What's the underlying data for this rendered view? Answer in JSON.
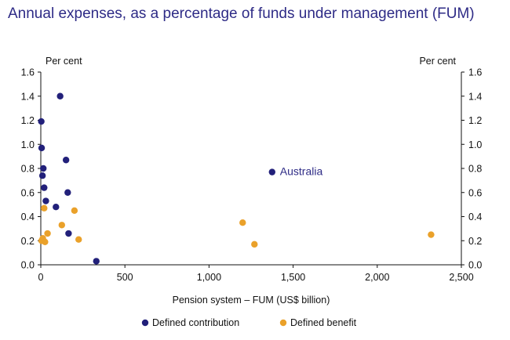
{
  "title": "Annual expenses, as a percentage of funds under management (FUM)",
  "colors": {
    "title": "#2e2b86",
    "defined_contribution": "#22207a",
    "defined_benefit": "#eaa12a",
    "axis": "#111111"
  },
  "chart_data": {
    "type": "scatter",
    "title": "Annual expenses, as a percentage of funds under management (FUM)",
    "xlabel": "Pension system – FUM (US$ billion)",
    "ylabel_left": "Per cent",
    "ylabel_right": "Per cent",
    "xlim": [
      0,
      2500
    ],
    "ylim": [
      0,
      1.6
    ],
    "x_ticks": [
      0,
      500,
      1000,
      1500,
      2000,
      2500
    ],
    "x_tick_labels": [
      "0",
      "500",
      "1,000",
      "1,500",
      "2,000",
      "2,500"
    ],
    "y_ticks": [
      0,
      0.2,
      0.4,
      0.6,
      0.8,
      1.0,
      1.2,
      1.4,
      1.6
    ],
    "y_tick_labels": [
      "0.0",
      "0.2",
      "0.4",
      "0.6",
      "0.8",
      "1.0",
      "1.2",
      "1.4",
      "1.6"
    ],
    "grid": false,
    "legend_position": "bottom",
    "series": [
      {
        "name": "Defined contribution",
        "points": [
          {
            "x": 3,
            "y": 1.19
          },
          {
            "x": 5,
            "y": 0.97
          },
          {
            "x": 10,
            "y": 0.74
          },
          {
            "x": 15,
            "y": 0.8
          },
          {
            "x": 20,
            "y": 0.64
          },
          {
            "x": 30,
            "y": 0.53
          },
          {
            "x": 90,
            "y": 0.48
          },
          {
            "x": 115,
            "y": 1.4
          },
          {
            "x": 150,
            "y": 0.87
          },
          {
            "x": 160,
            "y": 0.6
          },
          {
            "x": 165,
            "y": 0.26
          },
          {
            "x": 330,
            "y": 0.03
          },
          {
            "x": 1375,
            "y": 0.77
          }
        ]
      },
      {
        "name": "Defined benefit",
        "points": [
          {
            "x": 5,
            "y": 0.2
          },
          {
            "x": 12,
            "y": 0.22
          },
          {
            "x": 20,
            "y": 0.47
          },
          {
            "x": 25,
            "y": 0.19
          },
          {
            "x": 40,
            "y": 0.26
          },
          {
            "x": 125,
            "y": 0.33
          },
          {
            "x": 200,
            "y": 0.45
          },
          {
            "x": 225,
            "y": 0.21
          },
          {
            "x": 1200,
            "y": 0.35
          },
          {
            "x": 1270,
            "y": 0.17
          },
          {
            "x": 2320,
            "y": 0.25
          }
        ]
      }
    ],
    "annotations": [
      {
        "text": "Australia",
        "series": "Defined contribution",
        "x": 1375,
        "y": 0.77
      }
    ]
  }
}
